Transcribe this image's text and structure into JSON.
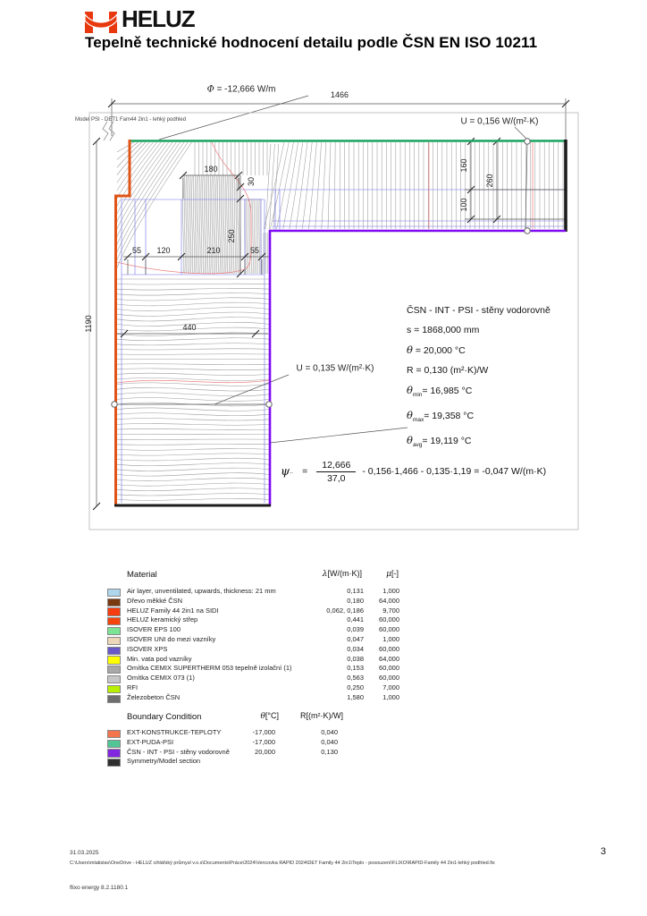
{
  "header": {
    "logo_text": "HELUZ",
    "title": "Tepelně technické hodnocení detailu podle ČSN EN ISO 10211"
  },
  "drawing": {
    "model_label": "Model PSI - DET1 Fam44 2in1 - lehký podhled",
    "phi_symbol": "Φ",
    "phi_value": "= -12,666 W/m",
    "u_top_label": "U = 0,156 W/(m²·K)",
    "u_wall_label": "U = 0,135 W/(m²·K)",
    "dims": {
      "width_total": "1466",
      "height_total": "1190",
      "d180": "180",
      "d30": "30",
      "d250": "250",
      "d55_left": "55",
      "d120": "120",
      "d210": "210",
      "d55_right": "55",
      "d440": "440",
      "d160": "160",
      "d260": "260",
      "d100": "100"
    },
    "info_block": {
      "lines": [
        {
          "sym": "",
          "sub": "",
          "text": "ČSN - INT - PSI - stěny vodorovně"
        },
        {
          "sym": "",
          "sub": "",
          "text": "s = 1868,000 mm"
        },
        {
          "sym": "θ",
          "sub": "",
          "text": " = 20,000 °C"
        },
        {
          "sym": "",
          "sub": "",
          "text": "R = 0,130 (m²·K)/W"
        },
        {
          "sym": "θ",
          "sub": "min",
          "text": "= 16,985 °C"
        },
        {
          "sym": "θ",
          "sub": "max",
          "text": "= 19,358 °C"
        },
        {
          "sym": "θ",
          "sub": "avg",
          "text": "= 19,119 °C"
        }
      ]
    },
    "formula": {
      "sym": "ψ",
      "sub": "..",
      "eq": "=",
      "numerator": "12,666",
      "denominator": "37,0",
      "tail": "-  0,156·1,466  -  0,135·1,19  =   -0,047 W/(m·K)"
    },
    "boundary_colors": {
      "ext_konstrukce": "#e05417",
      "ext_puda": "#18a35f",
      "int_psi": "#7d0af2",
      "section": "#1c1c1c"
    }
  },
  "material_table": {
    "title": "Material",
    "col_lambda_sym": "λ",
    "col_lambda": "[W/(m·K)]",
    "col_mu_sym": "μ",
    "col_mu": "[-]",
    "rows": [
      {
        "name": "Air layer, unventilated, upwards, thickness: 21 mm",
        "lambda": "0,131",
        "mu": "1,000",
        "color": "#aed6ec"
      },
      {
        "name": "Dřevo měkké ČSN",
        "lambda": "0,180",
        "mu": "64,000",
        "color": "#7a3a10"
      },
      {
        "name": "HELUZ Family 44 2in1 na SIDI",
        "lambda": "0,062, 0,186",
        "mu": "9,700",
        "color": "#f53d0f"
      },
      {
        "name": "HELUZ keramický střep",
        "lambda": "0,441",
        "mu": "60,000",
        "color": "#f5450f"
      },
      {
        "name": "ISOVER EPS 100",
        "lambda": "0,039",
        "mu": "60,000",
        "color": "#7ce495"
      },
      {
        "name": "ISOVER UNI do mezi vazníky",
        "lambda": "0,047",
        "mu": "1,000",
        "color": "#eed7b8"
      },
      {
        "name": "ISOVER XPS",
        "lambda": "0,034",
        "mu": "60,000",
        "color": "#6858c8"
      },
      {
        "name": "Min. vata pod vazníky",
        "lambda": "0,038",
        "mu": "64,000",
        "color": "#ffff00"
      },
      {
        "name": "Omítka CEMIX  SUPERTHERM 053 tepelně izolační (1)",
        "lambda": "0,153",
        "mu": "60,000",
        "color": "#a8a8a8"
      },
      {
        "name": "Omítka CEMIX 073 (1)",
        "lambda": "0,563",
        "mu": "60,000",
        "color": "#c6c6c6"
      },
      {
        "name": "RFI",
        "lambda": "0,250",
        "mu": "7,000",
        "color": "#b8f000"
      },
      {
        "name": "Železobeton ČSN",
        "lambda": "1,580",
        "mu": "1,000",
        "color": "#6e6e6e"
      }
    ]
  },
  "boundary_table": {
    "title": "Boundary Condition",
    "col_theta_sym": "θ",
    "col_theta": "[°C]",
    "col_r": "R[(m²·K)/W]",
    "rows": [
      {
        "name": "EXT-KONSTRUKCE-TEPLOTY",
        "theta": "-17,000",
        "r": "0,040",
        "color": "#f4744c"
      },
      {
        "name": "EXT-PUDA-PSI",
        "theta": "-17,000",
        "r": "0,040",
        "color": "#52c596"
      },
      {
        "name": "ČSN - INT - PSI - stěny vodorovně",
        "theta": "20,000",
        "r": "0,130",
        "color": "#8227e0"
      },
      {
        "name": "Symmetry/Model section",
        "theta": "",
        "r": "",
        "color": "#2f2f2f"
      }
    ]
  },
  "footer": {
    "date": "31.03.2025",
    "path": "C:\\Users\\mlatislav\\OneDrive - HELUZ cihlářský průmysl v.o.s\\Documents\\Práce\\2024\\Vencovka RAPID 2024\\DET Family 44 2in1\\Teplo - posouzení\\FLIXO\\RAPID-Family 44 2in1-lehký podhled.fix",
    "page": "3",
    "app": "flixo energy 8.2.1180.1"
  }
}
